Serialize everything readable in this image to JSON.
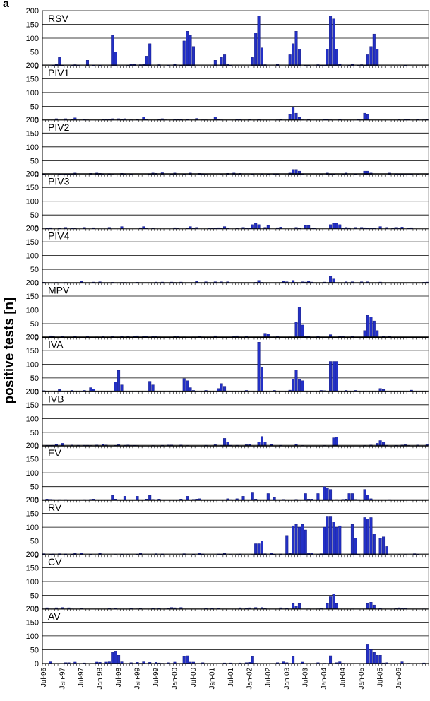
{
  "panel_letter": "a",
  "ylabel": "positive tests [n]",
  "chart_data": {
    "type": "bar",
    "ylabel": "positive tests [n]",
    "ylim": [
      0,
      200
    ],
    "yticks": [
      0,
      50,
      100,
      150,
      200
    ],
    "xtick_labels": [
      "Jul-96",
      "Jan-97",
      "Jul-97",
      "Jan-98",
      "Jul-98",
      "Jan-99",
      "Jul-99",
      "Jan-00",
      "Jul-00",
      "Jan-01",
      "Jul-01",
      "Jan-02",
      "Jul-02",
      "Jan-03",
      "Jul-03",
      "Jan-04",
      "Jul-04",
      "Jan-05",
      "Jul-05",
      "Jan-06"
    ],
    "bar_color": "#2330c6",
    "bar_edge": "#0a1070",
    "grid": true,
    "months": 124,
    "start_month": "Jul-96",
    "panels": [
      {
        "label": "RSV",
        "peaks": [
          [
            5,
            30
          ],
          [
            14,
            20
          ],
          [
            22,
            110
          ],
          [
            23,
            50
          ],
          [
            34,
            80
          ],
          [
            33,
            35
          ],
          [
            45,
            90
          ],
          [
            46,
            125
          ],
          [
            47,
            110
          ],
          [
            48,
            70
          ],
          [
            55,
            20
          ],
          [
            57,
            30
          ],
          [
            58,
            40
          ],
          [
            67,
            30
          ],
          [
            68,
            120
          ],
          [
            69,
            180
          ],
          [
            70,
            65
          ],
          [
            79,
            40
          ],
          [
            80,
            80
          ],
          [
            81,
            125
          ],
          [
            82,
            60
          ],
          [
            91,
            60
          ],
          [
            92,
            180
          ],
          [
            93,
            170
          ],
          [
            94,
            60
          ],
          [
            104,
            40
          ],
          [
            105,
            70
          ],
          [
            106,
            115
          ],
          [
            107,
            60
          ]
        ]
      },
      {
        "label": "PIV1",
        "peaks": [
          [
            10,
            8
          ],
          [
            32,
            12
          ],
          [
            38,
            5
          ],
          [
            55,
            12
          ],
          [
            79,
            20
          ],
          [
            80,
            45
          ],
          [
            81,
            25
          ],
          [
            82,
            10
          ],
          [
            103,
            25
          ],
          [
            104,
            20
          ]
        ]
      },
      {
        "label": "PIV2",
        "peaks": [
          [
            80,
            18
          ],
          [
            81,
            18
          ],
          [
            82,
            12
          ],
          [
            103,
            12
          ],
          [
            104,
            12
          ]
        ]
      },
      {
        "label": "PIV3",
        "peaks": [
          [
            25,
            8
          ],
          [
            32,
            8
          ],
          [
            47,
            8
          ],
          [
            58,
            8
          ],
          [
            67,
            15
          ],
          [
            68,
            20
          ],
          [
            69,
            15
          ],
          [
            72,
            12
          ],
          [
            84,
            12
          ],
          [
            85,
            12
          ],
          [
            92,
            15
          ],
          [
            93,
            20
          ],
          [
            94,
            20
          ],
          [
            95,
            15
          ],
          [
            108,
            8
          ]
        ]
      },
      {
        "label": "PIV4",
        "peaks": [
          [
            69,
            10
          ],
          [
            80,
            10
          ],
          [
            92,
            25
          ],
          [
            93,
            15
          ]
        ]
      },
      {
        "label": "MPV",
        "peaks": [
          [
            71,
            15
          ],
          [
            72,
            12
          ],
          [
            81,
            55
          ],
          [
            82,
            110
          ],
          [
            83,
            45
          ],
          [
            92,
            10
          ],
          [
            103,
            25
          ],
          [
            104,
            80
          ],
          [
            105,
            75
          ],
          [
            106,
            60
          ],
          [
            107,
            25
          ]
        ]
      },
      {
        "label": "IVA",
        "peaks": [
          [
            5,
            8
          ],
          [
            15,
            15
          ],
          [
            16,
            10
          ],
          [
            23,
            35
          ],
          [
            24,
            78
          ],
          [
            25,
            25
          ],
          [
            34,
            38
          ],
          [
            35,
            25
          ],
          [
            45,
            48
          ],
          [
            46,
            40
          ],
          [
            47,
            15
          ],
          [
            56,
            12
          ],
          [
            57,
            30
          ],
          [
            58,
            20
          ],
          [
            69,
            180
          ],
          [
            70,
            88
          ],
          [
            80,
            45
          ],
          [
            81,
            80
          ],
          [
            82,
            45
          ],
          [
            83,
            40
          ],
          [
            92,
            110
          ],
          [
            93,
            110
          ],
          [
            94,
            110
          ],
          [
            108,
            12
          ],
          [
            109,
            8
          ]
        ]
      },
      {
        "label": "IVB",
        "peaks": [
          [
            6,
            10
          ],
          [
            24,
            5
          ],
          [
            58,
            28
          ],
          [
            59,
            15
          ],
          [
            69,
            15
          ],
          [
            70,
            35
          ],
          [
            71,
            15
          ],
          [
            93,
            30
          ],
          [
            94,
            32
          ],
          [
            107,
            10
          ],
          [
            108,
            20
          ],
          [
            109,
            15
          ]
        ]
      },
      {
        "label": "EV",
        "peaks": [
          [
            22,
            18
          ],
          [
            26,
            15
          ],
          [
            30,
            15
          ],
          [
            34,
            18
          ],
          [
            46,
            15
          ],
          [
            64,
            15
          ],
          [
            67,
            30
          ],
          [
            72,
            25
          ],
          [
            74,
            10
          ],
          [
            84,
            25
          ],
          [
            88,
            25
          ],
          [
            90,
            50
          ],
          [
            91,
            45
          ],
          [
            92,
            40
          ],
          [
            98,
            25
          ],
          [
            99,
            25
          ],
          [
            103,
            40
          ],
          [
            104,
            20
          ]
        ]
      },
      {
        "label": "RV",
        "peaks": [
          [
            68,
            40
          ],
          [
            69,
            40
          ],
          [
            70,
            50
          ],
          [
            78,
            70
          ],
          [
            80,
            105
          ],
          [
            81,
            110
          ],
          [
            82,
            100
          ],
          [
            83,
            110
          ],
          [
            84,
            90
          ],
          [
            90,
            100
          ],
          [
            91,
            140
          ],
          [
            92,
            140
          ],
          [
            93,
            120
          ],
          [
            94,
            100
          ],
          [
            95,
            105
          ],
          [
            99,
            110
          ],
          [
            100,
            60
          ],
          [
            103,
            135
          ],
          [
            104,
            130
          ],
          [
            105,
            135
          ],
          [
            106,
            75
          ],
          [
            108,
            60
          ],
          [
            109,
            65
          ],
          [
            110,
            30
          ]
        ]
      },
      {
        "label": "CV",
        "peaks": [
          [
            80,
            20
          ],
          [
            81,
            10
          ],
          [
            82,
            20
          ],
          [
            91,
            20
          ],
          [
            92,
            45
          ],
          [
            93,
            55
          ],
          [
            94,
            20
          ],
          [
            104,
            20
          ],
          [
            105,
            25
          ],
          [
            106,
            15
          ]
        ]
      },
      {
        "label": "AV",
        "peaks": [
          [
            22,
            40
          ],
          [
            23,
            45
          ],
          [
            24,
            30
          ],
          [
            45,
            25
          ],
          [
            46,
            28
          ],
          [
            67,
            25
          ],
          [
            80,
            25
          ],
          [
            92,
            28
          ],
          [
            104,
            68
          ],
          [
            105,
            50
          ],
          [
            106,
            40
          ],
          [
            107,
            30
          ],
          [
            108,
            30
          ]
        ]
      }
    ]
  }
}
